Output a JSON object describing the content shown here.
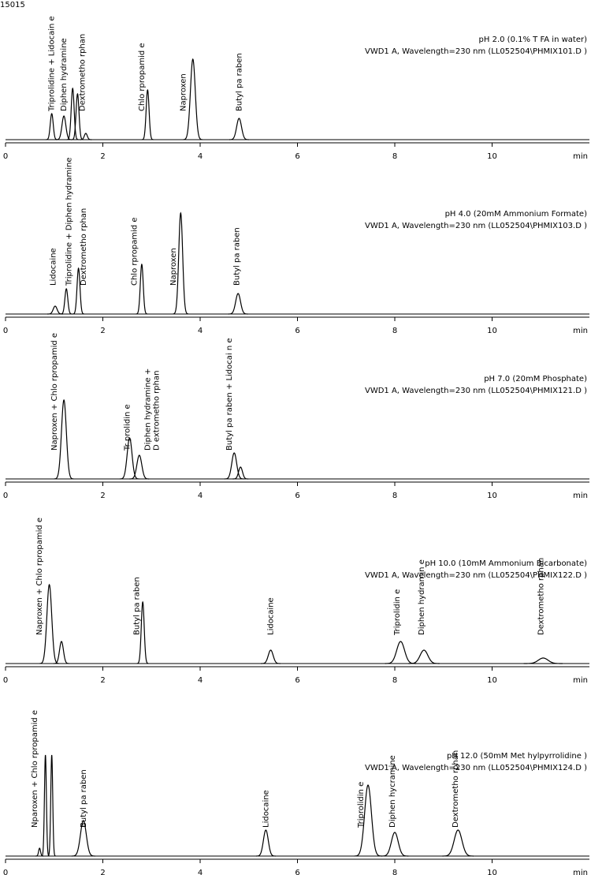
{
  "figure_label": "15015",
  "chart_data": [
    {
      "type": "chromatogram",
      "title": "pH 2.0 (0.1% T  FA in water)",
      "subtitle": "VWD1 A,  Wavelength=230 nm (LL052504\\PHMIX101.D     )",
      "xlabel": "min",
      "xlim": [
        0,
        12
      ],
      "xticks": [
        0,
        2,
        4,
        6,
        8,
        10
      ],
      "ylim": [
        0,
        130
      ],
      "color": "#000000",
      "peaks": {
        "x": [
          0.95,
          1.2,
          1.38,
          1.48,
          1.65,
          2.92,
          3.85,
          4.8
        ],
        "heights": [
          33,
          30,
          65,
          58,
          8,
          63,
          102,
          27
        ],
        "widths": [
          0.03,
          0.04,
          0.03,
          0.03,
          0.03,
          0.03,
          0.05,
          0.05
        ]
      },
      "annotations": [
        {
          "text": "Triprolidine + Lidocain  e",
          "x": 0.95
        },
        {
          "text": "Diphen hydramine",
          "x": 1.2
        },
        {
          "text": "Dextrometho rphan",
          "x": 1.58
        },
        {
          "text": "Chlo rpropamid e",
          "x": 2.8
        },
        {
          "text": "Naproxen",
          "x": 3.65
        },
        {
          "text": "Butyl pa raben",
          "x": 4.8
        }
      ]
    },
    {
      "type": "chromatogram",
      "title": "pH 4.0 (20mM Ammonium     Formate)",
      "subtitle": "VWD1 A,  Wavelength=230 nm (LL052504\\PHMIX103.D     )",
      "xlabel": "min",
      "xlim": [
        0,
        12
      ],
      "xticks": [
        0,
        2,
        4,
        6,
        8,
        10
      ],
      "ylim": [
        0,
        130
      ],
      "color": "#000000",
      "peaks": {
        "x": [
          1.02,
          1.25,
          1.5,
          2.8,
          3.6,
          4.78
        ],
        "heights": [
          10,
          32,
          58,
          63,
          128,
          26
        ],
        "widths": [
          0.04,
          0.03,
          0.03,
          0.03,
          0.04,
          0.05
        ]
      },
      "annotations": [
        {
          "text": "Lidocaine",
          "x": 0.98
        },
        {
          "text": "Triprolidine + Diphen  hydramine",
          "x": 1.3
        },
        {
          "text": "Dextrometho rphan",
          "x": 1.6
        },
        {
          "text": "Chlo rpropamid e",
          "x": 2.65
        },
        {
          "text": "Naproxen",
          "x": 3.45
        },
        {
          "text": "Butyl pa raben",
          "x": 4.75
        }
      ]
    },
    {
      "type": "chromatogram",
      "title": "pH 7.0 (20mM Phosphate)",
      "subtitle": "VWD1 A,  Wavelength=230 nm (LL052504\\PHMIX121.D     )",
      "xlabel": "min",
      "xlim": [
        0,
        12
      ],
      "xticks": [
        0,
        2,
        4,
        6,
        8,
        10
      ],
      "ylim": [
        0,
        130
      ],
      "color": "#000000",
      "peaks": {
        "x": [
          1.2,
          2.55,
          2.75,
          4.7,
          4.83
        ],
        "heights": [
          100,
          52,
          30,
          33,
          15
        ],
        "widths": [
          0.05,
          0.05,
          0.05,
          0.05,
          0.04
        ]
      },
      "annotations": [
        {
          "text": "Naproxen + Chlo rpropamid e",
          "x": 1.0
        },
        {
          "text": "Tr prolidin e",
          "x": 2.5
        },
        {
          "text": "Diphen hydramine +",
          "x": 2.92
        },
        {
          "text": "D extrometho rphan",
          "x": 3.1
        },
        {
          "text": "Butyl pa raben + Lidocai n e",
          "x": 4.6
        }
      ]
    },
    {
      "type": "chromatogram",
      "title": "pH 10.0 (10mM Ammonium Bicarbonate)",
      "subtitle": "VWD1 A,  Wavelength=230 nm (LL052504\\PHMIX122.D     )",
      "xlabel": "min",
      "xlim": [
        0,
        12
      ],
      "xticks": [
        0,
        2,
        4,
        6,
        8,
        10
      ],
      "ylim": [
        0,
        130
      ],
      "color": "#000000",
      "peaks": {
        "x": [
          0.9,
          1.15,
          2.82,
          5.45,
          8.12,
          8.6,
          11.05
        ],
        "heights": [
          100,
          28,
          78,
          17,
          28,
          17,
          7
        ],
        "widths": [
          0.05,
          0.04,
          0.03,
          0.05,
          0.08,
          0.08,
          0.1
        ]
      },
      "annotations": [
        {
          "text": "Naproxen + Chlo rpropamid e",
          "x": 0.7
        },
        {
          "text": "Butyl pa raben",
          "x": 2.7
        },
        {
          "text": "Lidocaine",
          "x": 5.45
        },
        {
          "text": "Triprolidin e",
          "x": 8.05
        },
        {
          "text": "Diphen hydramin e",
          "x": 8.55
        },
        {
          "text": "Dextrometho rphan",
          "x": 11.0
        }
      ]
    },
    {
      "type": "chromatogram",
      "title": "pH 12.0 (50mM Met  hylpyrrolidine )",
      "subtitle": "VWD1 A,  Wavelength=230 nm (LL052504\\PHMIX124.D     )",
      "xlabel": "min",
      "xlim": [
        0,
        12
      ],
      "xticks": [
        0,
        2,
        4,
        6,
        8,
        10
      ],
      "ylim": [
        0,
        130
      ],
      "color": "#000000",
      "peaks": {
        "x": [
          0.7,
          0.82,
          0.95,
          1.6,
          5.35,
          7.45,
          8.0,
          9.3
        ],
        "heights": [
          10,
          128,
          128,
          45,
          33,
          90,
          30,
          33
        ],
        "widths": [
          0.02,
          0.02,
          0.02,
          0.06,
          0.05,
          0.07,
          0.07,
          0.08
        ]
      },
      "annotations": [
        {
          "text": "Nparoxen + Chlo rpropamid e",
          "x": 0.6
        },
        {
          "text": "Butyl pa raben",
          "x": 1.6
        },
        {
          "text": "Lidocaine",
          "x": 5.35
        },
        {
          "text": "Triprolidin e",
          "x": 7.3
        },
        {
          "text": "Diphen hycramine",
          "x": 7.95
        },
        {
          "text": "Dextrometho rphan",
          "x": 9.25
        }
      ]
    }
  ]
}
